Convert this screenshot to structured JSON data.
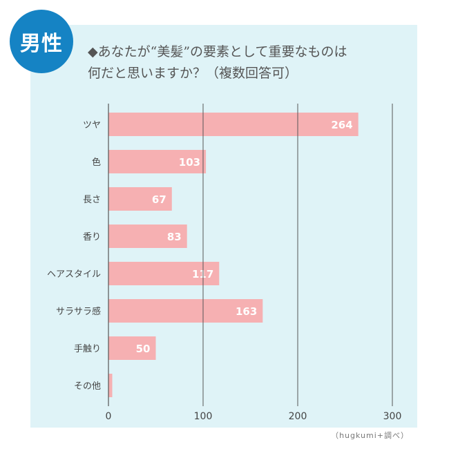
{
  "badge": {
    "label": "男性"
  },
  "header": {
    "title_line1": "◆あなたが“美髪”の要素として重要なものは",
    "title_line2": "何だと思いますか？（複数回答可）"
  },
  "source": "（hugkumi+調べ）",
  "colors": {
    "bar": "#f6b0b2",
    "panel": "#dff3f7",
    "badge": "#1583c4",
    "grid": "#555555"
  },
  "chart_data": {
    "type": "bar",
    "orientation": "horizontal",
    "categories": [
      "ツヤ",
      "色",
      "長さ",
      "香り",
      "ヘアスタイル",
      "サラサラ感",
      "手触り",
      "その他"
    ],
    "values": [
      264,
      103,
      67,
      83,
      117,
      163,
      50,
      4
    ],
    "value_labels": [
      "264",
      "103",
      "67",
      "83",
      "117",
      "163",
      "50",
      ""
    ],
    "xlim": [
      0,
      300
    ],
    "xticks": [
      0,
      100,
      200,
      300
    ],
    "xtick_labels": [
      "0",
      "100",
      "200",
      "300"
    ],
    "grid": true,
    "legend": "none"
  }
}
